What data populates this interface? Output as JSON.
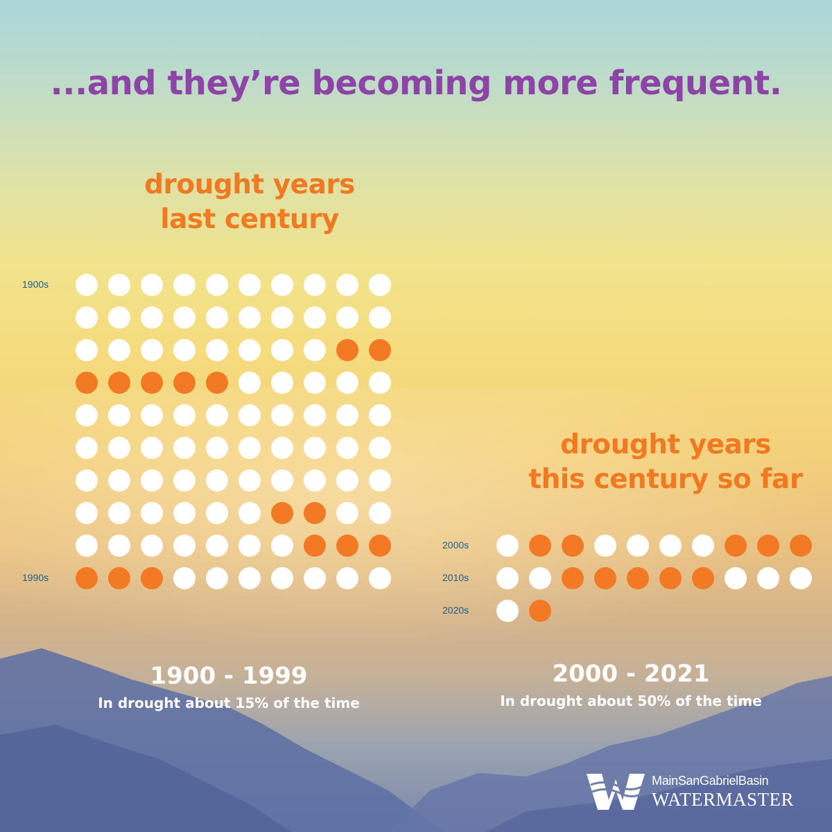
{
  "headline": "...and they’re becoming more frequent.",
  "logo": {
    "line1": "MainSanGabrielBasin",
    "line2": "WATERMASTER"
  },
  "colors": {
    "headline": "#8e44a6",
    "section_title": "#f07a22",
    "drought_dot": "#f37a24",
    "non_drought_dot": "#ffffff",
    "row_label": "#1d5d8c"
  },
  "chart_data": [
    {
      "type": "dot-matrix",
      "title_lines": [
        "drought years",
        "last century"
      ],
      "period": "1900 - 1999",
      "caption": "In drought about 15% of the time",
      "row_labels": [
        "1900s",
        "",
        "",
        "",
        "",
        "",
        "",
        "",
        "",
        "1990s"
      ],
      "columns_per_row": 10,
      "rows": [
        [
          0,
          0,
          0,
          0,
          0,
          0,
          0,
          0,
          0,
          0
        ],
        [
          0,
          0,
          0,
          0,
          0,
          0,
          0,
          0,
          0,
          0
        ],
        [
          0,
          0,
          0,
          0,
          0,
          0,
          0,
          0,
          1,
          1
        ],
        [
          1,
          1,
          1,
          1,
          1,
          0,
          0,
          0,
          0,
          0
        ],
        [
          0,
          0,
          0,
          0,
          0,
          0,
          0,
          0,
          0,
          0
        ],
        [
          0,
          0,
          0,
          0,
          0,
          0,
          0,
          0,
          0,
          0
        ],
        [
          0,
          0,
          0,
          0,
          0,
          0,
          0,
          0,
          0,
          0
        ],
        [
          0,
          0,
          0,
          0,
          0,
          0,
          1,
          1,
          0,
          0
        ],
        [
          0,
          0,
          0,
          0,
          0,
          0,
          0,
          1,
          1,
          1
        ],
        [
          1,
          1,
          1,
          0,
          0,
          0,
          0,
          0,
          0,
          0
        ]
      ]
    },
    {
      "type": "dot-matrix",
      "title_lines": [
        "drought years",
        "this century so far"
      ],
      "period": "2000 - 2021",
      "caption": "In drought about 50% of the time",
      "row_labels": [
        "2000s",
        "2010s",
        "2020s"
      ],
      "columns_per_row": 10,
      "rows": [
        [
          0,
          1,
          1,
          0,
          0,
          0,
          0,
          1,
          1,
          1
        ],
        [
          0,
          0,
          1,
          1,
          1,
          1,
          1,
          0,
          0,
          0
        ],
        [
          0,
          1
        ]
      ]
    }
  ]
}
